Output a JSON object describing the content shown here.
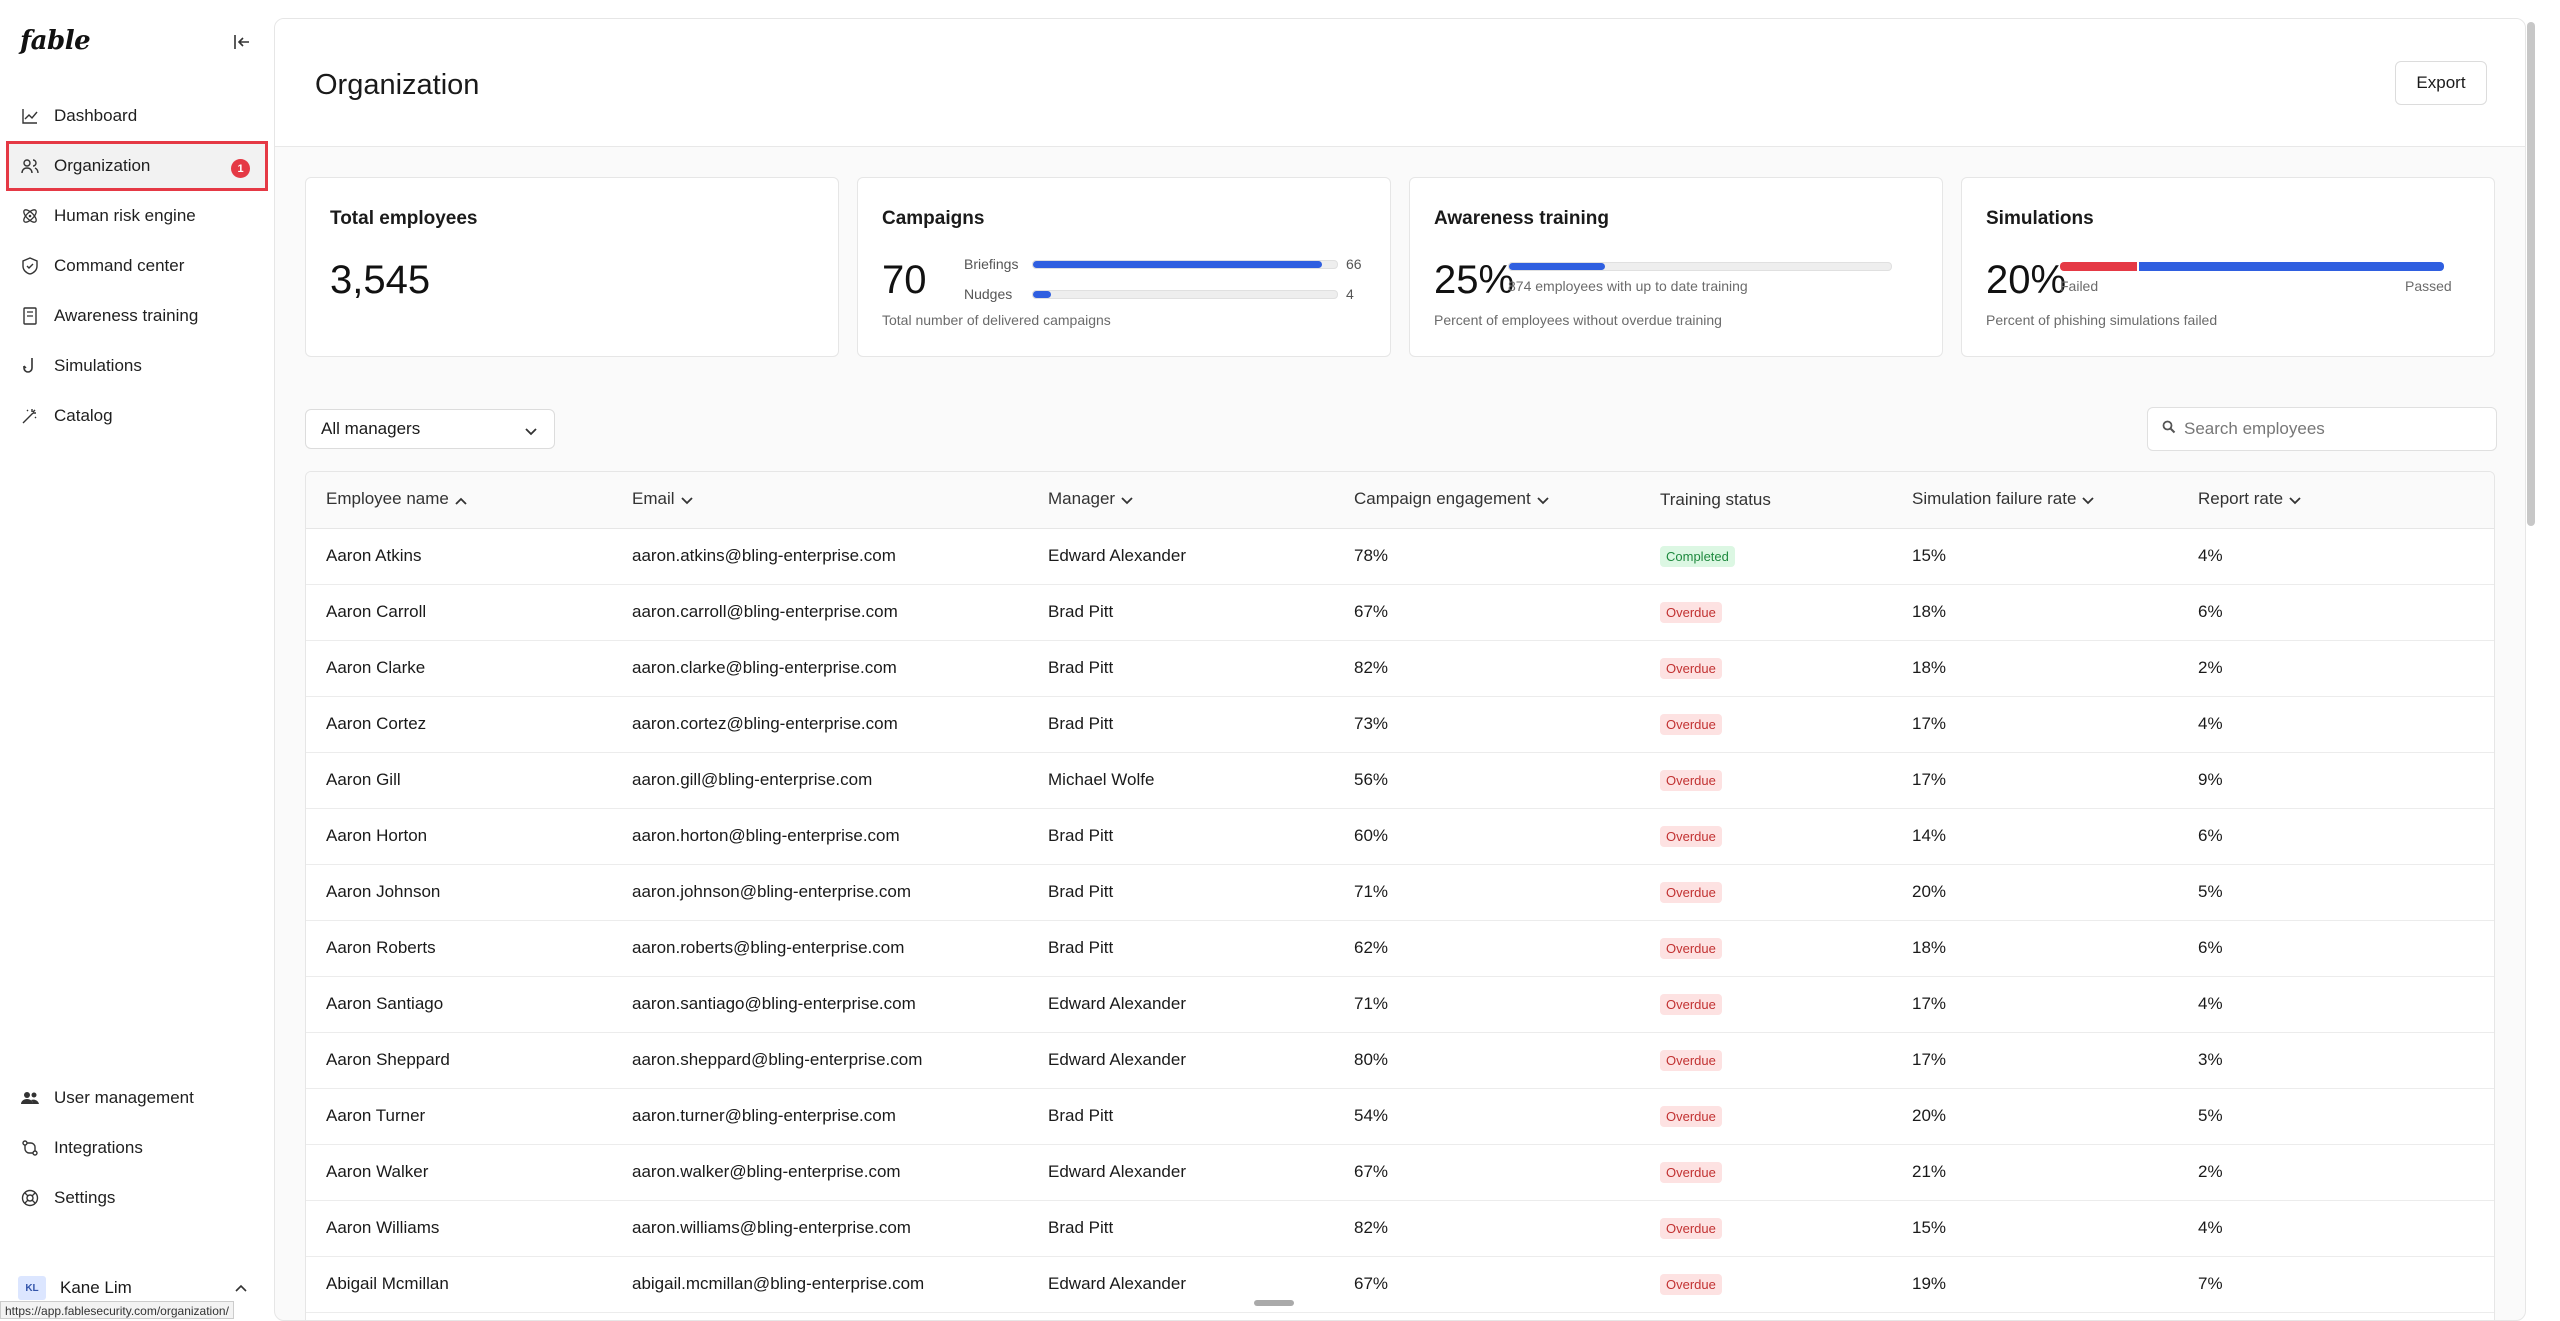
{
  "app": {
    "logo": "fable"
  },
  "sidebar": {
    "items": [
      {
        "label": "Dashboard",
        "icon": "chart-line-icon"
      },
      {
        "label": "Organization",
        "icon": "users-icon",
        "badge": "1"
      },
      {
        "label": "Human risk engine",
        "icon": "atom-icon"
      },
      {
        "label": "Command center",
        "icon": "shield-icon"
      },
      {
        "label": "Awareness training",
        "icon": "book-icon"
      },
      {
        "label": "Simulations",
        "icon": "hook-icon"
      },
      {
        "label": "Catalog",
        "icon": "wand-icon"
      }
    ],
    "bottom_items": [
      {
        "label": "User management",
        "icon": "user-group-icon"
      },
      {
        "label": "Integrations",
        "icon": "git-branch-icon"
      },
      {
        "label": "Settings",
        "icon": "gear-icon"
      }
    ],
    "user": {
      "initials": "KL",
      "name": "Kane Lim"
    }
  },
  "status_url": "https://app.fablesecurity.com/organization/",
  "header": {
    "title": "Organization",
    "export_label": "Export"
  },
  "cards": {
    "total_employees": {
      "title": "Total employees",
      "value": "3,545"
    },
    "campaigns": {
      "title": "Campaigns",
      "value": "70",
      "subtitle": "Total number of delivered campaigns",
      "briefings": {
        "label": "Briefings",
        "count": "66",
        "fraction": 0.95
      },
      "nudges": {
        "label": "Nudges",
        "count": "4",
        "fraction": 0.06
      }
    },
    "awareness": {
      "title": "Awareness training",
      "value": "25%",
      "bar_caption": "874 employees with up to date training",
      "subtitle": "Percent of employees without overdue training",
      "fraction": 0.25
    },
    "simulations": {
      "title": "Simulations",
      "value": "20%",
      "failed_label": "Failed",
      "passed_label": "Passed",
      "subtitle": "Percent of phishing simulations failed",
      "failed_fraction": 0.2,
      "colors": {
        "failed": "#e53945",
        "passed": "#2f5fe0"
      }
    }
  },
  "filters": {
    "manager_select": "All managers",
    "search_placeholder": "Search employees"
  },
  "table": {
    "columns": [
      "Employee name",
      "Email",
      "Manager",
      "Campaign engagement",
      "Training status",
      "Simulation failure rate",
      "Report rate"
    ],
    "rows": [
      [
        "Aaron Atkins",
        "aaron.atkins@bling-enterprise.com",
        "Edward Alexander",
        "78%",
        "Completed",
        "15%",
        "4%"
      ],
      [
        "Aaron Carroll",
        "aaron.carroll@bling-enterprise.com",
        "Brad Pitt",
        "67%",
        "Overdue",
        "18%",
        "6%"
      ],
      [
        "Aaron Clarke",
        "aaron.clarke@bling-enterprise.com",
        "Brad Pitt",
        "82%",
        "Overdue",
        "18%",
        "2%"
      ],
      [
        "Aaron Cortez",
        "aaron.cortez@bling-enterprise.com",
        "Brad Pitt",
        "73%",
        "Overdue",
        "17%",
        "4%"
      ],
      [
        "Aaron Gill",
        "aaron.gill@bling-enterprise.com",
        "Michael Wolfe",
        "56%",
        "Overdue",
        "17%",
        "9%"
      ],
      [
        "Aaron Horton",
        "aaron.horton@bling-enterprise.com",
        "Brad Pitt",
        "60%",
        "Overdue",
        "14%",
        "6%"
      ],
      [
        "Aaron Johnson",
        "aaron.johnson@bling-enterprise.com",
        "Brad Pitt",
        "71%",
        "Overdue",
        "20%",
        "5%"
      ],
      [
        "Aaron Roberts",
        "aaron.roberts@bling-enterprise.com",
        "Brad Pitt",
        "62%",
        "Overdue",
        "18%",
        "6%"
      ],
      [
        "Aaron Santiago",
        "aaron.santiago@bling-enterprise.com",
        "Edward Alexander",
        "71%",
        "Overdue",
        "17%",
        "4%"
      ],
      [
        "Aaron Sheppard",
        "aaron.sheppard@bling-enterprise.com",
        "Edward Alexander",
        "80%",
        "Overdue",
        "17%",
        "3%"
      ],
      [
        "Aaron Turner",
        "aaron.turner@bling-enterprise.com",
        "Brad Pitt",
        "54%",
        "Overdue",
        "20%",
        "5%"
      ],
      [
        "Aaron Walker",
        "aaron.walker@bling-enterprise.com",
        "Edward Alexander",
        "67%",
        "Overdue",
        "21%",
        "2%"
      ],
      [
        "Aaron Williams",
        "aaron.williams@bling-enterprise.com",
        "Brad Pitt",
        "82%",
        "Overdue",
        "15%",
        "4%"
      ],
      [
        "Abigail Mcmillan",
        "abigail.mcmillan@bling-enterprise.com",
        "Edward Alexander",
        "67%",
        "Overdue",
        "19%",
        "7%"
      ]
    ]
  }
}
